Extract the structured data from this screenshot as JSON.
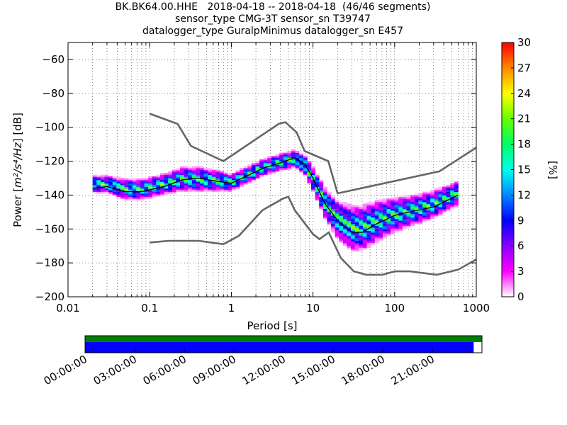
{
  "title_lines": [
    "BK.BK64.00.HHE   2018-04-18 -- 2018-04-18  (46/46 segments)",
    "sensor_type CMG-3T sensor_sn T39747",
    "datalogger_type GuralpMinimus datalogger_sn E457"
  ],
  "chart_data": [
    {
      "type": "heatmap",
      "xlabel": "Period [s]",
      "ylabel_prefix": "Power [",
      "ylabel_units": "m²/s⁴/Hz",
      "ylabel_suffix": "] [dB]",
      "xscale": "log",
      "xlim": [
        0.01,
        1000
      ],
      "ylim": [
        -200,
        -50
      ],
      "x_ticks": [
        0.01,
        0.1,
        1,
        10,
        100,
        1000
      ],
      "x_tick_labels": [
        "0.01",
        "0.1",
        "1",
        "10",
        "100",
        "1000"
      ],
      "y_ticks": [
        -60,
        -80,
        -100,
        -120,
        -140,
        -160,
        -180,
        -200
      ],
      "y_tick_labels": [
        "−60",
        "−80",
        "−100",
        "−120",
        "−140",
        "−160",
        "−180",
        "−200"
      ],
      "grid": true,
      "colorbar": {
        "label": "[%]",
        "range": [
          0,
          30
        ],
        "ticks": [
          0,
          3,
          6,
          9,
          12,
          15,
          18,
          21,
          24,
          27,
          30
        ],
        "colors": [
          "#ffffff",
          "#ff00ff",
          "#8800ff",
          "#0000ff",
          "#0088ff",
          "#00ffee",
          "#00ff66",
          "#66ff00",
          "#ffff00",
          "#ff8800",
          "#ff0000"
        ]
      },
      "mode_curve": [
        [
          0.02,
          -136
        ],
        [
          0.03,
          -135
        ],
        [
          0.05,
          -138
        ],
        [
          0.08,
          -138
        ],
        [
          0.15,
          -135
        ],
        [
          0.25,
          -131
        ],
        [
          0.4,
          -130
        ],
        [
          0.7,
          -132
        ],
        [
          1.0,
          -133
        ],
        [
          1.5,
          -129
        ],
        [
          2.5,
          -124
        ],
        [
          4,
          -121
        ],
        [
          6,
          -118
        ],
        [
          8,
          -122
        ],
        [
          10,
          -130
        ],
        [
          14,
          -145
        ],
        [
          20,
          -155
        ],
        [
          30,
          -162
        ],
        [
          40,
          -162
        ],
        [
          60,
          -157
        ],
        [
          100,
          -152
        ],
        [
          150,
          -150
        ],
        [
          300,
          -147
        ],
        [
          600,
          -140
        ]
      ],
      "psd_band": [
        [
          0.02,
          -134,
          5
        ],
        [
          0.03,
          -134,
          5
        ],
        [
          0.05,
          -137,
          6
        ],
        [
          0.08,
          -137,
          6
        ],
        [
          0.15,
          -134,
          6
        ],
        [
          0.25,
          -131,
          7
        ],
        [
          0.4,
          -131,
          7
        ],
        [
          0.7,
          -132,
          6
        ],
        [
          1.0,
          -133,
          5
        ],
        [
          1.5,
          -129,
          5
        ],
        [
          2.5,
          -124,
          5
        ],
        [
          4,
          -121,
          5
        ],
        [
          6,
          -119,
          5
        ],
        [
          8,
          -123,
          6
        ],
        [
          10,
          -131,
          7
        ],
        [
          14,
          -145,
          9
        ],
        [
          20,
          -155,
          11
        ],
        [
          30,
          -160,
          13
        ],
        [
          40,
          -160,
          13
        ],
        [
          60,
          -156,
          12
        ],
        [
          100,
          -152,
          10
        ],
        [
          150,
          -150,
          9
        ],
        [
          300,
          -146,
          8
        ],
        [
          600,
          -139,
          7
        ]
      ],
      "nhnm": [
        [
          0.1,
          -92
        ],
        [
          0.22,
          -98
        ],
        [
          0.32,
          -111
        ],
        [
          0.8,
          -120
        ],
        [
          3.8,
          -98
        ],
        [
          4.6,
          -97
        ],
        [
          6.3,
          -103
        ],
        [
          7.9,
          -114
        ],
        [
          15.4,
          -120
        ],
        [
          20,
          -139
        ],
        [
          354,
          -126
        ],
        [
          1000,
          -112
        ]
      ],
      "nlnm": [
        [
          0.1,
          -168
        ],
        [
          0.17,
          -167
        ],
        [
          0.4,
          -167
        ],
        [
          0.8,
          -169
        ],
        [
          1.24,
          -164
        ],
        [
          2.4,
          -149
        ],
        [
          4.3,
          -142
        ],
        [
          5,
          -141
        ],
        [
          6,
          -149
        ],
        [
          10,
          -163
        ],
        [
          12,
          -166
        ],
        [
          15.6,
          -162
        ],
        [
          21.9,
          -177
        ],
        [
          31.6,
          -185
        ],
        [
          45,
          -187
        ],
        [
          70,
          -187
        ],
        [
          101,
          -185
        ],
        [
          154,
          -185
        ],
        [
          328,
          -187
        ],
        [
          600,
          -184
        ],
        [
          1000,
          -178
        ]
      ]
    },
    {
      "type": "timeline",
      "xlim_hours": [
        0,
        24
      ],
      "tick_labels": [
        "00:00:00",
        "03:00:00",
        "06:00:00",
        "09:00:00",
        "12:00:00",
        "15:00:00",
        "18:00:00",
        "21:00:00"
      ],
      "rows": [
        {
          "color": "#008000",
          "coverage": [
            [
              0,
              24
            ]
          ]
        },
        {
          "color": "#0000ff",
          "coverage": [
            [
              0,
              23.5
            ]
          ]
        }
      ]
    }
  ]
}
